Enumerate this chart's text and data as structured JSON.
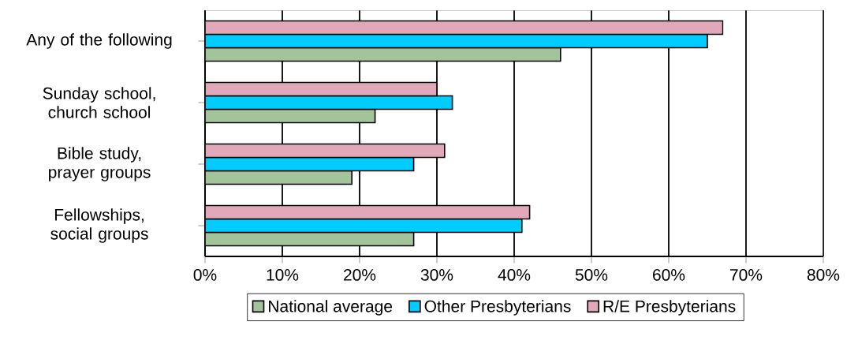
{
  "chart_data": {
    "type": "bar",
    "orientation": "horizontal",
    "categories": [
      "Any of the following",
      "Sunday school, church school",
      "Bible study, prayer groups",
      "Fellowships, social groups"
    ],
    "series": [
      {
        "name": "National average",
        "color": "#a3c49a",
        "values": [
          0.46,
          0.22,
          0.19,
          0.27
        ]
      },
      {
        "name": "Other Presbyterians",
        "color": "#00ccff",
        "values": [
          0.65,
          0.32,
          0.27,
          0.41
        ]
      },
      {
        "name": "R/E Presbyterians",
        "color": "#e0a8b8",
        "values": [
          0.67,
          0.3,
          0.31,
          0.42
        ]
      }
    ],
    "xlim": [
      0,
      0.8
    ],
    "xticks": [
      {
        "value": 0,
        "label": "0%"
      },
      {
        "value": 0.1,
        "label": "10%"
      },
      {
        "value": 0.2,
        "label": "20%"
      },
      {
        "value": 0.3,
        "label": "30%"
      },
      {
        "value": 0.4,
        "label": "40%"
      },
      {
        "value": 0.5,
        "label": "50%"
      },
      {
        "value": 0.6,
        "label": "60%"
      },
      {
        "value": 0.7,
        "label": "70%"
      },
      {
        "value": 0.8,
        "label": "80%"
      }
    ],
    "grid": "x",
    "legend": "bottom"
  }
}
